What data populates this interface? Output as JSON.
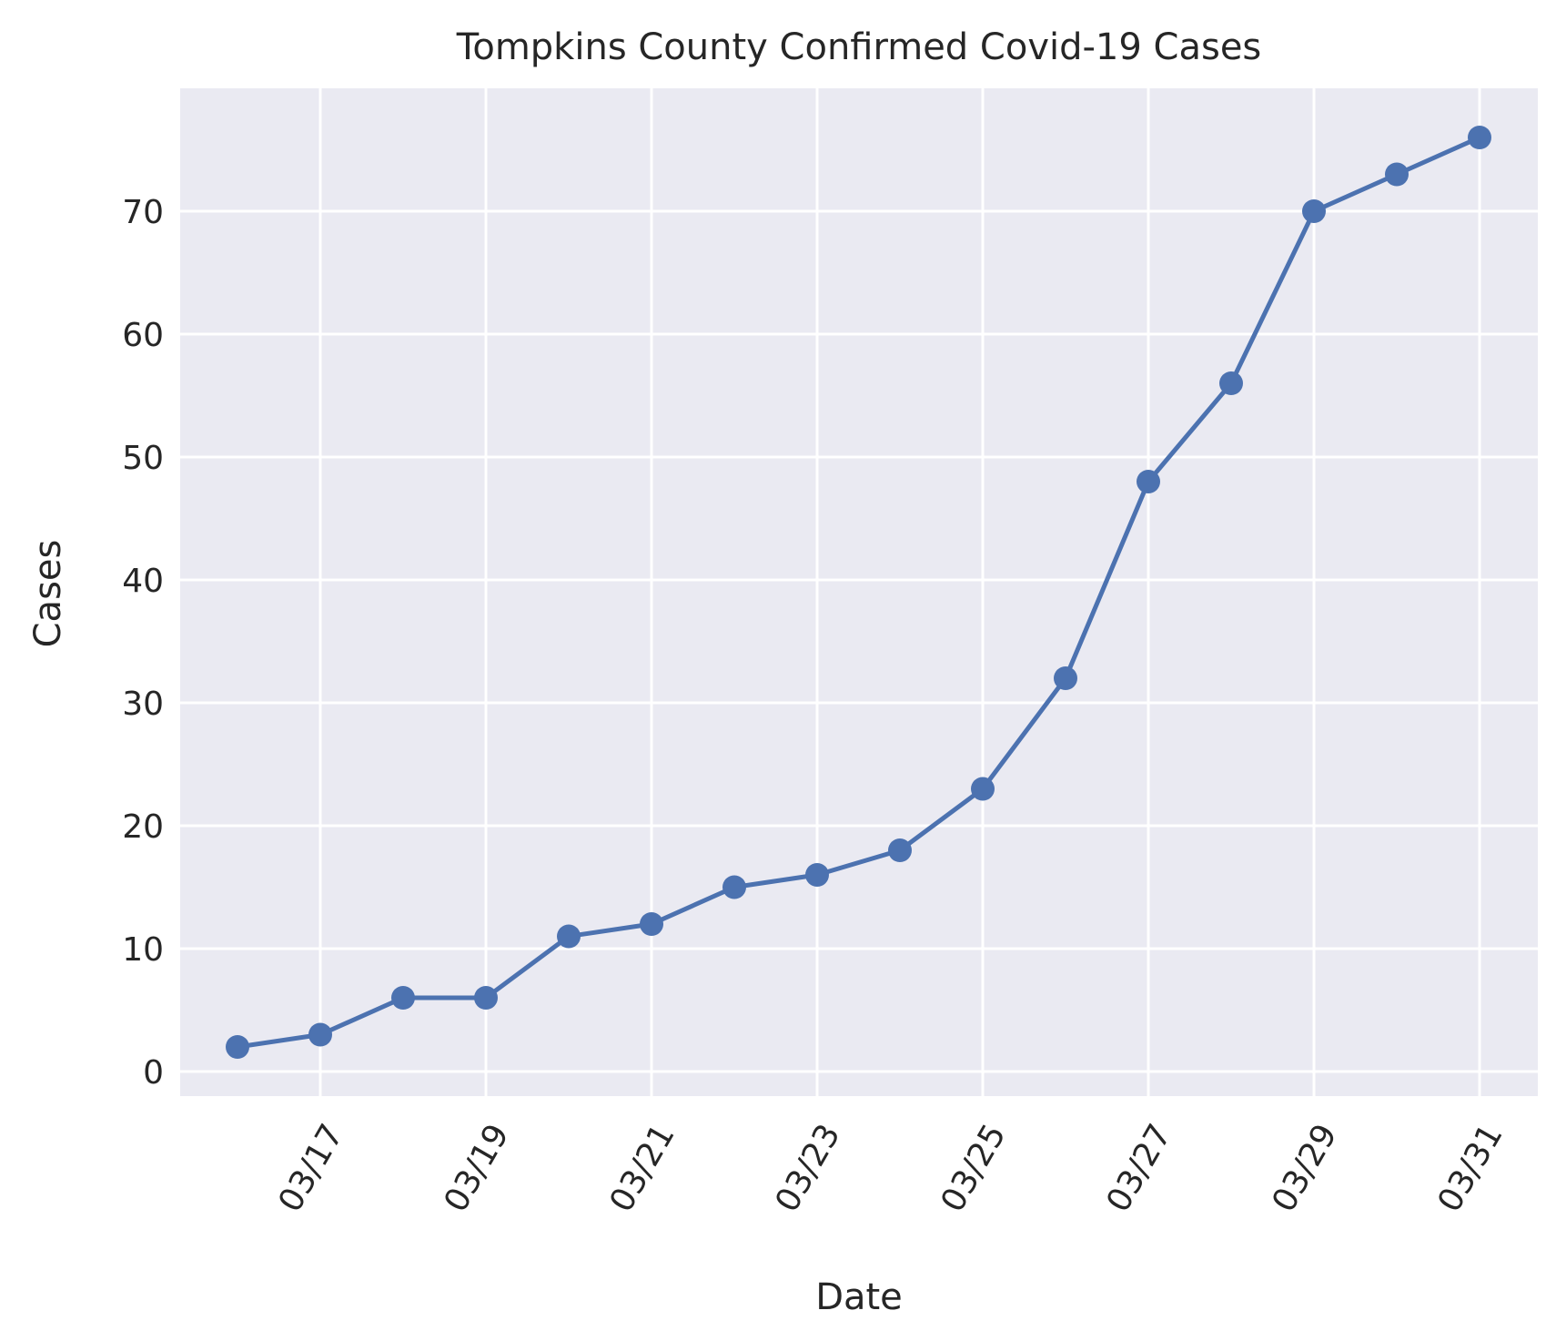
{
  "chart_data": {
    "type": "line",
    "title": "Tompkins County Confirmed Covid-19 Cases",
    "xlabel": "Date",
    "ylabel": "Cases",
    "x": [
      "03/16",
      "03/17",
      "03/18",
      "03/19",
      "03/20",
      "03/21",
      "03/22",
      "03/23",
      "03/24",
      "03/25",
      "03/26",
      "03/27",
      "03/28",
      "03/29",
      "03/30",
      "03/31"
    ],
    "xticks": [
      "03/17",
      "03/19",
      "03/21",
      "03/23",
      "03/25",
      "03/27",
      "03/29",
      "03/31"
    ],
    "yticks": [
      0,
      10,
      20,
      30,
      40,
      50,
      60,
      70
    ],
    "ylim": [
      -2,
      80
    ],
    "series": [
      {
        "values": [
          2,
          3,
          6,
          6,
          11,
          12,
          15,
          16,
          18,
          23,
          32,
          48,
          56,
          70,
          73,
          76
        ]
      }
    ],
    "grid": true,
    "colors": {
      "line": "#4c72b0",
      "plot_background": "#eaeaf2",
      "grid": "#ffffff",
      "text": "#262626"
    }
  }
}
